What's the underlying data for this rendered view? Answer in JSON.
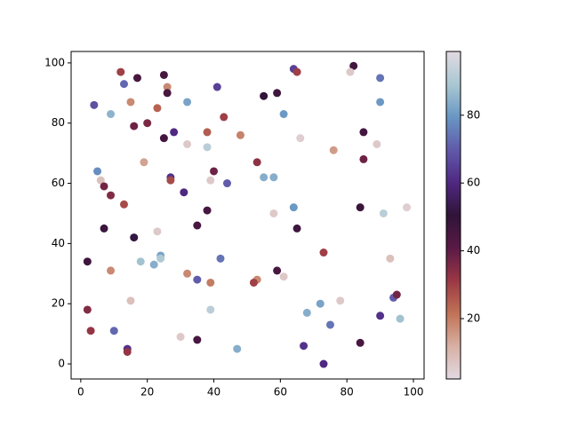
{
  "chart_data": {
    "type": "scatter",
    "colormap": "twilight_r",
    "x": [
      12,
      13,
      17,
      25,
      26,
      26,
      4,
      15,
      9,
      23,
      32,
      41,
      43,
      38,
      48,
      64,
      65,
      55,
      59,
      61,
      82,
      81,
      90,
      90,
      16,
      20,
      25,
      28,
      32,
      38,
      66,
      76,
      85,
      89,
      85,
      19,
      53,
      5,
      6,
      7,
      9,
      13,
      27,
      27,
      31,
      40,
      39,
      44,
      55,
      58,
      38,
      58,
      64,
      84,
      91,
      98,
      7,
      16,
      23,
      35,
      65,
      2,
      9,
      18,
      22,
      24,
      24,
      32,
      35,
      39,
      42,
      53,
      52,
      59,
      61,
      73,
      93,
      2,
      15,
      39,
      72,
      68,
      78,
      75,
      94,
      95,
      90,
      96,
      3,
      10,
      14,
      14,
      30,
      35,
      47,
      67,
      73,
      84
    ],
    "y": [
      97,
      93,
      95,
      96,
      92,
      90,
      86,
      87,
      83,
      85,
      87,
      92,
      82,
      77,
      76,
      98,
      97,
      89,
      90,
      83,
      99,
      97,
      95,
      87,
      79,
      80,
      75,
      77,
      73,
      72,
      75,
      71,
      77,
      73,
      68,
      67,
      67,
      64,
      61,
      59,
      56,
      53,
      62,
      61,
      57,
      64,
      61,
      60,
      62,
      62,
      51,
      50,
      52,
      52,
      50,
      52,
      45,
      42,
      44,
      46,
      45,
      34,
      31,
      34,
      33,
      36,
      35,
      30,
      28,
      27,
      35,
      28,
      27,
      31,
      29,
      37,
      35,
      18,
      21,
      18,
      20,
      17,
      21,
      13,
      22,
      23,
      16,
      15,
      11,
      11,
      5,
      4,
      9,
      8,
      5,
      6,
      0,
      7
    ],
    "c": [
      30,
      72,
      45,
      45,
      18,
      45,
      68,
      18,
      85,
      24,
      82,
      65,
      30,
      25,
      19,
      65,
      30,
      50,
      47,
      80,
      46,
      6,
      74,
      80,
      38,
      36,
      46,
      60,
      6,
      92,
      5,
      15,
      46,
      6,
      38,
      14,
      33,
      78,
      8,
      37,
      35,
      28,
      62,
      28,
      60,
      38,
      6,
      70,
      84,
      84,
      45,
      6,
      80,
      48,
      92,
      5,
      48,
      52,
      6,
      45,
      47,
      47,
      18,
      88,
      84,
      82,
      90,
      18,
      70,
      20,
      74,
      18,
      30,
      45,
      6,
      30,
      8,
      35,
      8,
      92,
      82,
      84,
      6,
      74,
      70,
      37,
      62,
      88,
      32,
      72,
      62,
      32,
      6,
      45,
      84,
      62,
      60,
      45
    ],
    "xlim": [
      -2.9,
      103.2
    ],
    "ylim": [
      -5,
      103.8
    ],
    "xticks": [
      0,
      20,
      40,
      60,
      80,
      100
    ],
    "yticks": [
      0,
      20,
      40,
      60,
      80,
      100
    ],
    "clim": [
      2.2,
      98.8
    ],
    "cticks": [
      20,
      40,
      60,
      80
    ]
  }
}
